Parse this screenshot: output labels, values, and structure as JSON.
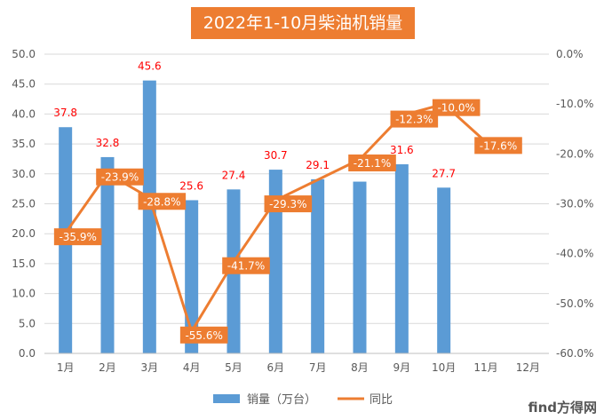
{
  "chart_data": {
    "type": "bar",
    "title": "2022年1-10月柴油机销量",
    "categories": [
      "1月",
      "2月",
      "3月",
      "4月",
      "5月",
      "6月",
      "7月",
      "8月",
      "9月",
      "10月",
      "11月",
      "12月"
    ],
    "series": [
      {
        "name": "销量（万台）",
        "type": "bar",
        "axis": "left",
        "color": "#5B9BD5",
        "values": [
          37.8,
          32.8,
          45.6,
          25.6,
          27.4,
          30.7,
          29.1,
          28.7,
          31.6,
          27.7,
          null,
          null
        ],
        "labels": [
          "37.8",
          "32.8",
          "45.6",
          "25.6",
          "27.4",
          "30.7",
          "29.1",
          "28.7",
          "31.6",
          "27.7",
          "",
          ""
        ]
      },
      {
        "name": "同比",
        "type": "line",
        "axis": "right",
        "color": "#ED7D31",
        "values": [
          -35.9,
          -23.9,
          -28.8,
          -55.6,
          -41.7,
          -29.3,
          null,
          -21.1,
          -12.3,
          -10.0,
          -17.6,
          null
        ],
        "labels": [
          "-35.9%",
          "-23.9%",
          "-28.8%",
          "-55.6%",
          "-41.7%",
          "-29.3%",
          "",
          "-21.1%",
          "-12.3%",
          "-10.0%",
          "-17.6%",
          ""
        ]
      }
    ],
    "y_left": {
      "min": 0,
      "max": 50,
      "step": 5,
      "ticks": [
        "0.0",
        "5.0",
        "10.0",
        "15.0",
        "20.0",
        "25.0",
        "30.0",
        "35.0",
        "40.0",
        "45.0",
        "50.0"
      ]
    },
    "y_right": {
      "min": -60,
      "max": 0,
      "step": 10,
      "ticks": [
        "-60.0%",
        "-50.0%",
        "-40.0%",
        "-30.0%",
        "-20.0%",
        "-10.0%",
        "0.0%"
      ]
    },
    "grid": true,
    "legend_position": "bottom"
  },
  "watermark": "find方得网"
}
